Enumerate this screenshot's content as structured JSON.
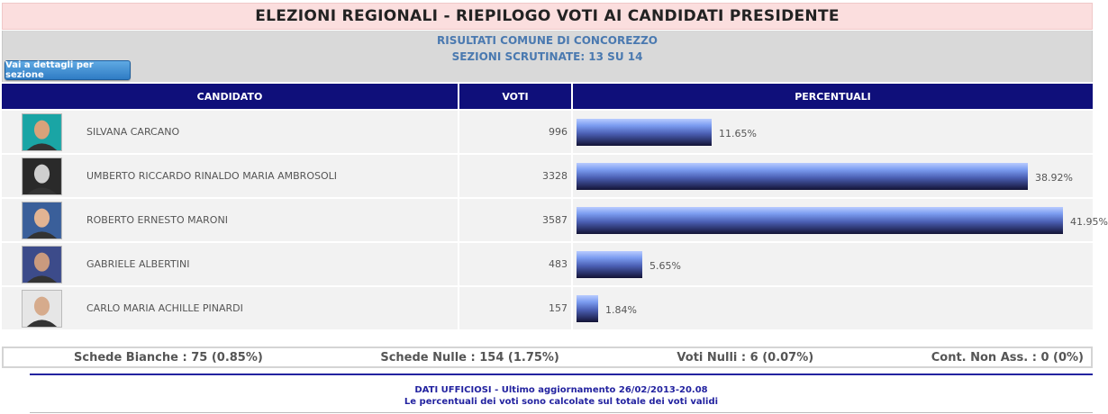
{
  "header": {
    "title": "ELEZIONI REGIONALI - RIEPILOGO VOTI AI CANDIDATI PRESIDENTE",
    "subtitle_line1": "RISULTATI COMUNE DI CONCOREZZO",
    "subtitle_line2": "SEZIONI SCRUTINATE: 13 SU 14",
    "sections_button_label": "Vai a dettagli per sezione"
  },
  "table": {
    "columns": [
      "CANDIDATO",
      "VOTI",
      "PERCENTUALI"
    ],
    "rows": [
      {
        "name": "SILVANA CARCANO",
        "votes": "996",
        "percent_label": "11.65%",
        "percent": 11.65,
        "photo_icon": "candidate-photo-icon"
      },
      {
        "name": "UMBERTO RICCARDO RINALDO MARIA AMBROSOLI",
        "votes": "3328",
        "percent_label": "38.92%",
        "percent": 38.92,
        "photo_icon": "candidate-photo-icon"
      },
      {
        "name": "ROBERTO ERNESTO MARONI",
        "votes": "3587",
        "percent_label": "41.95%",
        "percent": 41.95,
        "photo_icon": "candidate-photo-icon"
      },
      {
        "name": "GABRIELE ALBERTINI",
        "votes": "483",
        "percent_label": "5.65%",
        "percent": 5.65,
        "photo_icon": "candidate-photo-icon"
      },
      {
        "name": "CARLO MARIA ACHILLE PINARDI",
        "votes": "157",
        "percent_label": "1.84%",
        "percent": 1.84,
        "photo_icon": "candidate-photo-icon"
      }
    ]
  },
  "stats": {
    "schede_bianche": "Schede Bianche : 75 (0.85%)",
    "schede_nulle": "Schede Nulle : 154 (1.75%)",
    "voti_nulli": "Voti Nulli : 6 (0.07%)",
    "cont_non_ass": "Cont. Non Ass. : 0 (0%)"
  },
  "footer": {
    "line1": "DATI UFFICIOSI - Ultimo aggiornamento 26/02/2013-20.08",
    "line2": "Le percentuali dei voti sono calcolate sul totale dei voti validi"
  },
  "colors": {
    "header_bg": "#0f0f7a",
    "title_bg": "#fbdede",
    "info_text": "#4a79b0",
    "footer_text": "#2323a0"
  }
}
